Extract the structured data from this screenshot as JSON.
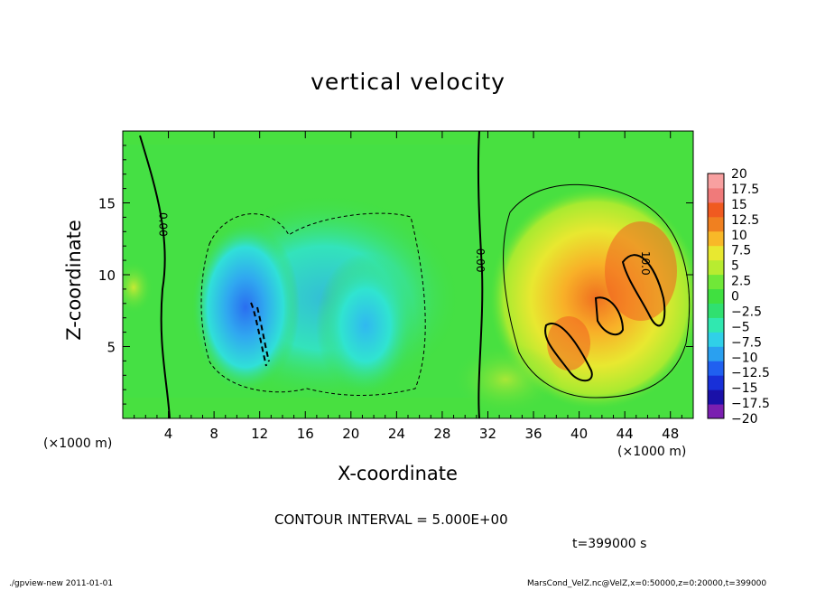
{
  "title": "vertical velocity",
  "footer_left": "./gpview-new  2011-01-01",
  "footer_right": "MarsCond_VelZ.nc@VelZ,x=0:50000,z=0:20000,t=399000",
  "contour_interval_text": "CONTOUR INTERVAL = 5.000E+00",
  "time_text": "t=399000 s",
  "chart_data": {
    "type": "heatmap",
    "title": "vertical velocity",
    "xlabel": "X-coordinate",
    "ylabel": "Z-coordinate",
    "x_unit_label": "(×1000 m)",
    "y_unit_label": "(×1000 m)",
    "xlim": [
      0,
      50
    ],
    "ylim": [
      0,
      20
    ],
    "x_ticks": [
      4,
      8,
      12,
      16,
      20,
      24,
      28,
      32,
      36,
      40,
      44,
      48
    ],
    "x_tick_labels": [
      "4",
      "8",
      "12",
      "16",
      "20",
      "24",
      "28",
      "32",
      "36",
      "40",
      "44",
      "48"
    ],
    "y_ticks": [
      5,
      10,
      15
    ],
    "y_tick_labels": [
      "5",
      "10",
      "15"
    ],
    "contour_labels": [
      {
        "x": 3.2,
        "z": 13.5,
        "text": "0.00"
      },
      {
        "x": 31.0,
        "z": 11.0,
        "text": "0.00"
      },
      {
        "x": 45.5,
        "z": 10.8,
        "text": "10.0"
      }
    ],
    "colorbar": {
      "levels": [
        -20,
        -17.5,
        -15,
        -12.5,
        -10,
        -7.5,
        -5,
        -2.5,
        0,
        2.5,
        5,
        7.5,
        10,
        12.5,
        15,
        17.5,
        20
      ],
      "labels": [
        "20",
        "17.5",
        "15",
        "12.5",
        "10",
        "7.5",
        "5",
        "2.5",
        "0",
        "−2.5",
        "−5",
        "−7.5",
        "−10",
        "−12.5",
        "−15",
        "−17.5",
        "−20"
      ],
      "colors": [
        "#7a1fb0",
        "#1a10a8",
        "#1830d8",
        "#2060f0",
        "#2aa0f0",
        "#30d0e8",
        "#30e8b0",
        "#30e070",
        "#40e040",
        "#70e838",
        "#b8ec30",
        "#e8e830",
        "#f8b828",
        "#f08020",
        "#f05a20",
        "#f07a7a",
        "#f8a0a0"
      ]
    },
    "grid": false
  }
}
